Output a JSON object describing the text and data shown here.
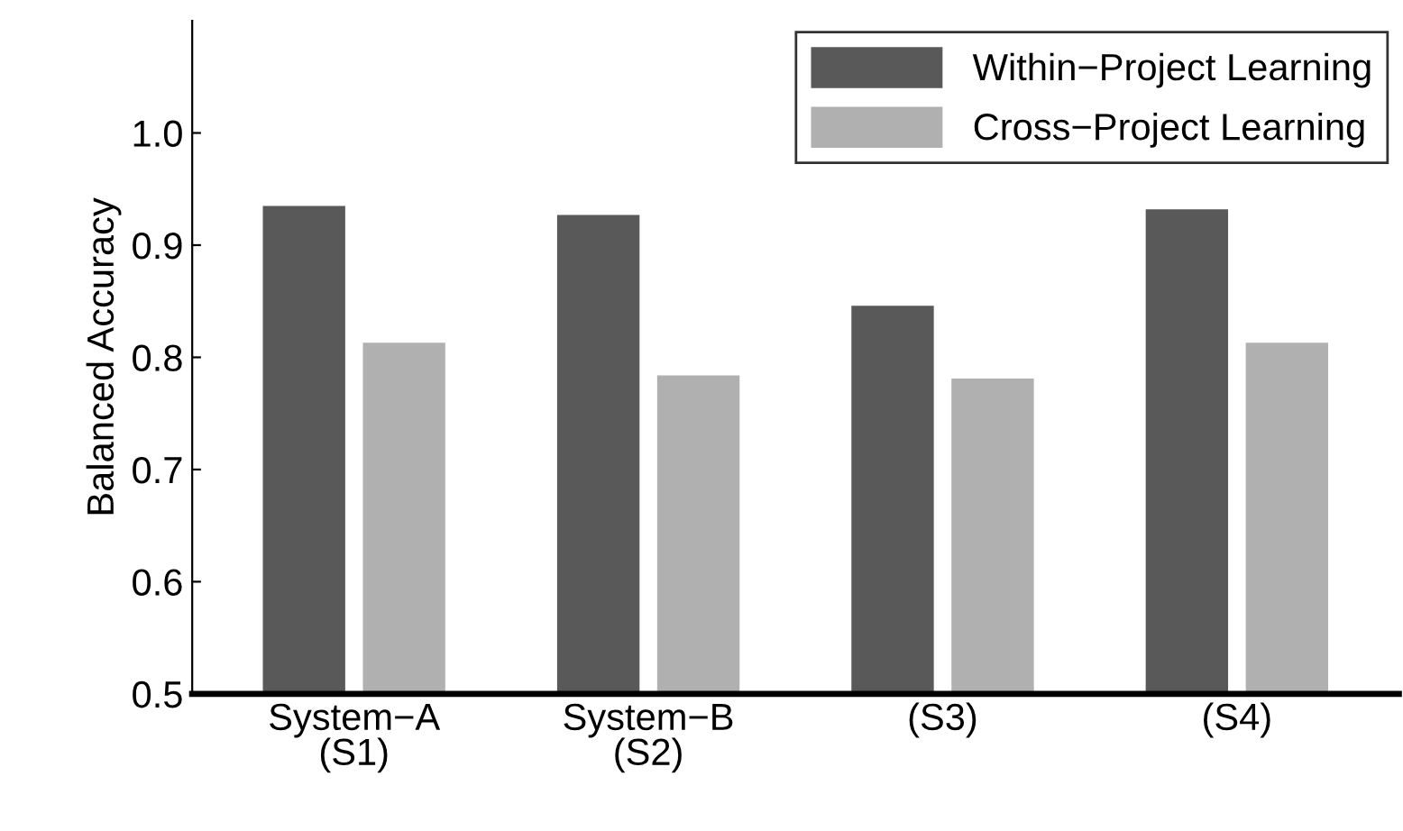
{
  "chart_data": {
    "type": "bar",
    "ylabel": "Balanced Accuracy",
    "categories": [
      "System−A\n(S1)",
      "System−B\n(S2)",
      "(S3)",
      "(S4)"
    ],
    "series": [
      {
        "name": "Within−Project Learning",
        "color": "#595959",
        "values": [
          0.935,
          0.927,
          0.846,
          0.932
        ]
      },
      {
        "name": "Cross−Project Learning",
        "color": "#b0b0b0",
        "values": [
          0.813,
          0.784,
          0.781,
          0.813
        ]
      }
    ],
    "ylim": [
      0.5,
      1.1
    ],
    "yticks": [
      0.5,
      0.6,
      0.7,
      0.8,
      0.9,
      {
        "value": 1.0,
        "label": "1.0"
      }
    ],
    "grid": false,
    "legend": "top right"
  }
}
